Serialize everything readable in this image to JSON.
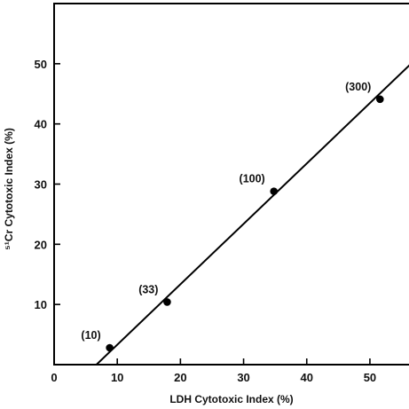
{
  "chart_data": {
    "type": "scatter",
    "xlabel": "LDH Cytotoxic Index (%)",
    "ylabel": "⁵¹Cr Cytotoxic Index (%)",
    "xlim": [
      0,
      59
    ],
    "ylim": [
      0,
      60
    ],
    "x_ticks": [
      0,
      10,
      20,
      30,
      40,
      50
    ],
    "y_ticks": [
      10,
      20,
      30,
      40,
      50
    ],
    "grid": false,
    "points": [
      {
        "x": 8.8,
        "y": 2.8,
        "label": "(10)"
      },
      {
        "x": 17.9,
        "y": 10.4,
        "label": "(33)"
      },
      {
        "x": 34.8,
        "y": 28.8,
        "label": "(100)"
      },
      {
        "x": 51.6,
        "y": 44.1,
        "label": "(300)"
      }
    ],
    "fit_line": {
      "x": [
        6.7,
        59
      ],
      "y": [
        0,
        52.5
      ]
    }
  }
}
